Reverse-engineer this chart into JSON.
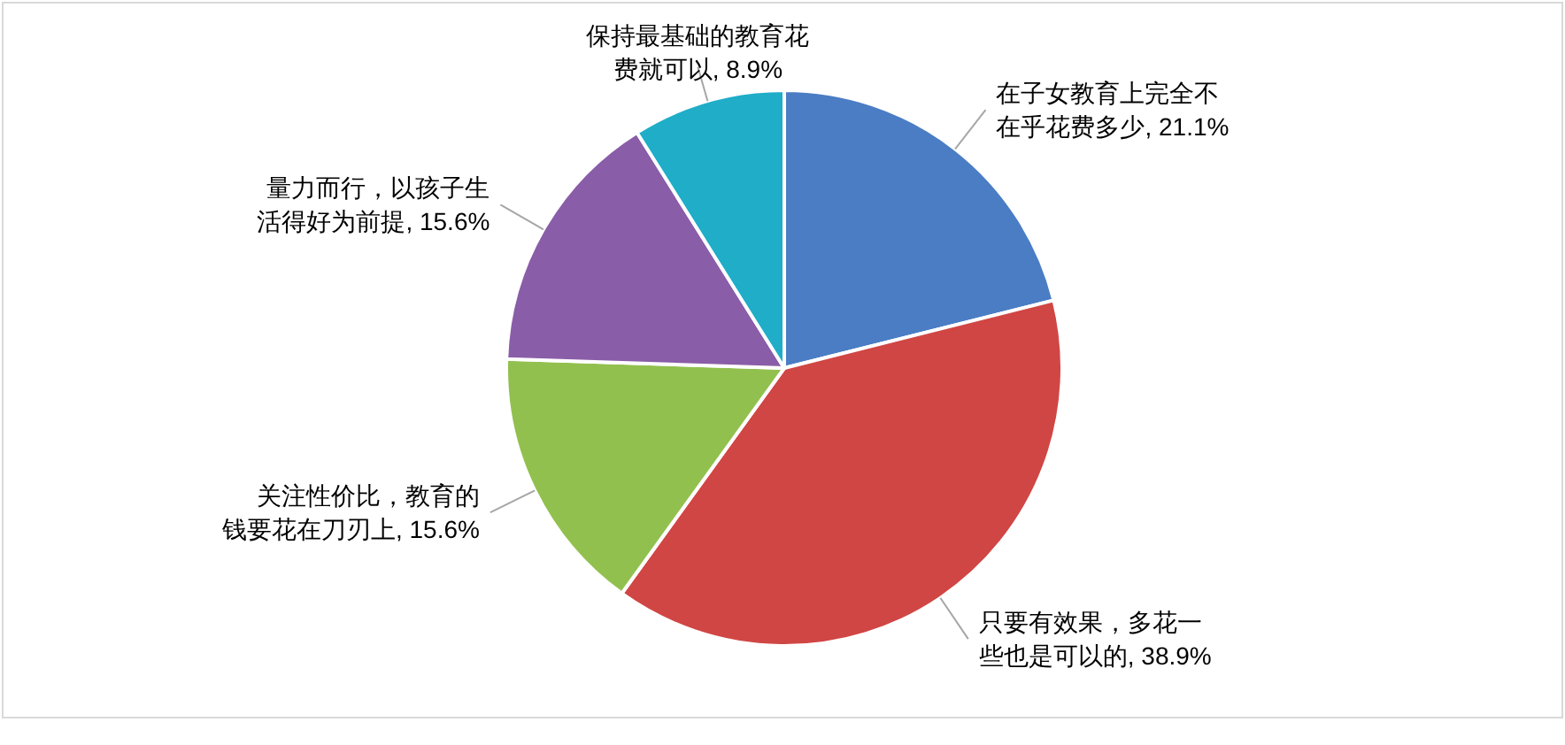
{
  "chart_data": {
    "type": "pie",
    "categories": [
      "在子女教育上完全不在乎花费多少",
      "只要有效果，多花一些也是可以的",
      "关注性价比，教育的钱要花在刀刃上",
      "量力而行，以孩子生活得好为前提",
      "保持最基础的教育花费就可以"
    ],
    "values": [
      21.1,
      38.9,
      15.6,
      15.6,
      8.9
    ],
    "value_labels": [
      "21.1%",
      "38.9%",
      "15.6%",
      "15.6%",
      "8.9%"
    ],
    "colors": [
      "#4a7dc4",
      "#d04644",
      "#92c04e",
      "#8a5da8",
      "#1fadc8"
    ],
    "legend": false
  }
}
